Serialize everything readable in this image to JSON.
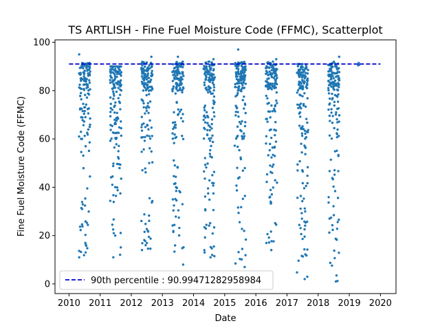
{
  "chart_data": {
    "type": "scatter",
    "title": "TS ARTLISH - Fine Fuel Moisture Code (FFMC), Scatterplot",
    "xlabel": "Date",
    "ylabel": "Fine Fuel Moisture Code (FFMC)",
    "xlim": [
      2009.55,
      2020.5
    ],
    "ylim": [
      -4,
      101
    ],
    "x_ticks": [
      "2010",
      "2011",
      "2012",
      "2013",
      "2014",
      "2015",
      "2016",
      "2017",
      "2018",
      "2019",
      "2020"
    ],
    "y_ticks": [
      "0",
      "20",
      "40",
      "60",
      "80",
      "100"
    ],
    "marker_color": "#1f77b4",
    "grid": false,
    "reference_line": {
      "value": 90.99471282958984,
      "color": "#0000cd",
      "style": "dashed",
      "x_range": [
        2010.0,
        2020.0
      ]
    },
    "legend": {
      "position": "lower-left",
      "label": "90th percentile : 90.99471282958984"
    },
    "seasons": [
      {
        "year": 2010,
        "start": 2010.32,
        "end": 2010.68,
        "min": 11,
        "max": 95,
        "n": 150
      },
      {
        "year": 2011,
        "start": 2011.32,
        "end": 2011.68,
        "min": 11,
        "max": 90,
        "n": 165
      },
      {
        "year": 2012,
        "start": 2012.32,
        "end": 2012.68,
        "min": 14,
        "max": 94,
        "n": 160
      },
      {
        "year": 2013,
        "start": 2013.32,
        "end": 2013.68,
        "min": 8,
        "max": 94,
        "n": 160
      },
      {
        "year": 2014,
        "start": 2014.32,
        "end": 2014.68,
        "min": 11,
        "max": 93,
        "n": 160
      },
      {
        "year": 2015,
        "start": 2015.32,
        "end": 2015.68,
        "min": 7,
        "max": 97,
        "n": 165
      },
      {
        "year": 2016,
        "start": 2016.32,
        "end": 2016.68,
        "min": 14,
        "max": 93,
        "n": 160
      },
      {
        "year": 2017,
        "start": 2017.32,
        "end": 2017.68,
        "min": 2,
        "max": 91,
        "n": 160
      },
      {
        "year": 2018,
        "start": 2018.32,
        "end": 2018.68,
        "min": 1,
        "max": 94,
        "n": 160
      },
      {
        "year": 2019,
        "start": 2019.28,
        "end": 2019.32,
        "min": 90,
        "max": 93,
        "n": 4
      }
    ]
  }
}
